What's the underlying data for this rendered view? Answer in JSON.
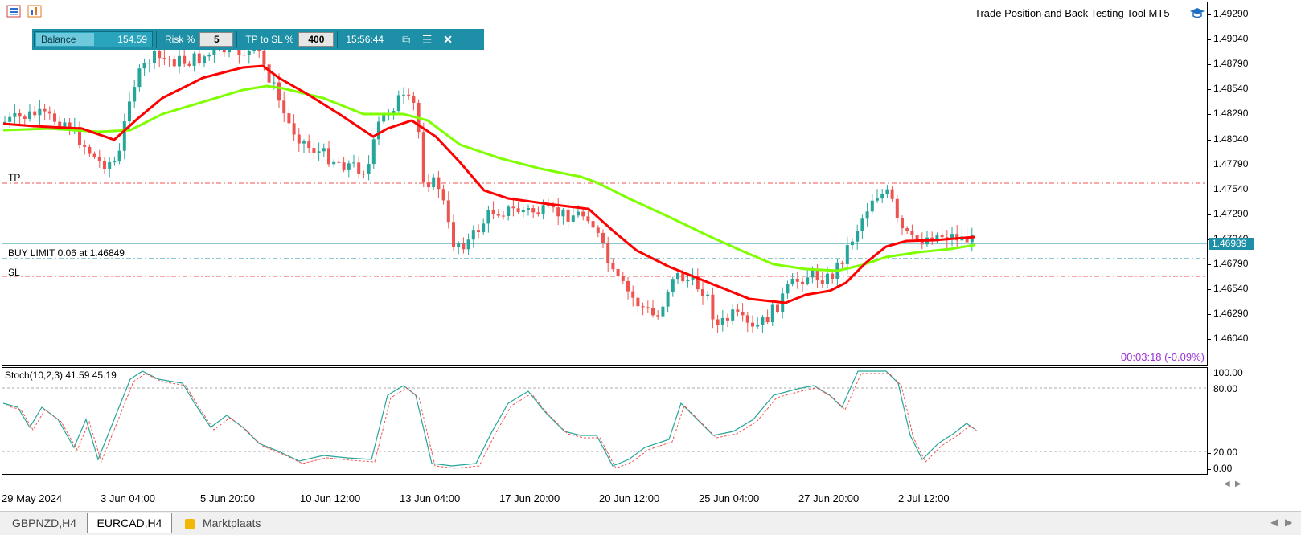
{
  "window": {
    "indicator_title": "Trade Position and Back Testing Tool MT5"
  },
  "trade_panel": {
    "balance_label": "Balance",
    "balance_value": "154.59",
    "risk_label": "Risk %",
    "risk_value": "5",
    "tp_sl_label": "TP to SL %",
    "tp_sl_value": "400",
    "time": "15:56:44"
  },
  "levels": {
    "tp_label": "TP",
    "sl_label": "SL",
    "buy_limit_label": "BUY LIMIT 0.06 at 1.46849",
    "current_price": "1.46989",
    "timer": "00:03:18 (-0.09%)"
  },
  "price_axis": [
    "1.49290",
    "1.49040",
    "1.48790",
    "1.48540",
    "1.48290",
    "1.48040",
    "1.47790",
    "1.47540",
    "1.47290",
    "1.47040",
    "1.46790",
    "1.46540",
    "1.46290",
    "1.46040"
  ],
  "stoch": {
    "title": "Stoch(10,2,3) 41.59 45.19",
    "axis": [
      "100.00",
      "80.00",
      "20.00",
      "0.00"
    ]
  },
  "date_axis": [
    "29 May 2024",
    "3 Jun 04:00",
    "5 Jun 20:00",
    "10 Jun 12:00",
    "13 Jun 04:00",
    "17 Jun 20:00",
    "20 Jun 12:00",
    "25 Jun 04:00",
    "27 Jun 20:00",
    "2 Jul 12:00"
  ],
  "tabs": [
    {
      "label": "GBPNZD,H4"
    },
    {
      "label": "EURCAD,H4"
    },
    {
      "label": "Marktplaats"
    }
  ],
  "colors": {
    "bull": "#26a69a",
    "bear": "#ef5350",
    "ma_fast": "#ff0000",
    "ma_slow": "#7fff00",
    "panel": "#1d8fa6",
    "timer": "#9b30d9"
  }
}
